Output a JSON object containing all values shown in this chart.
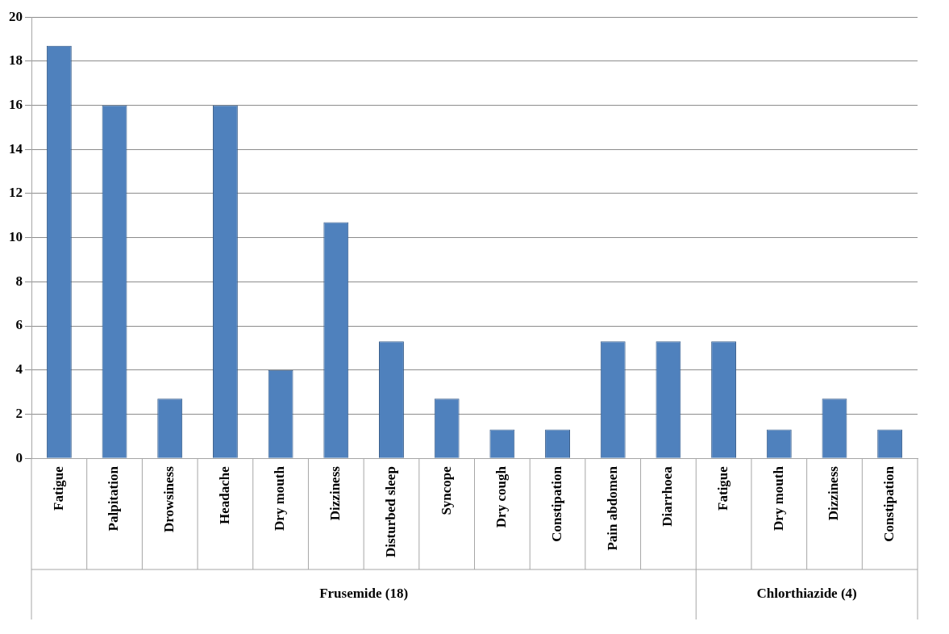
{
  "chart_data": {
    "type": "bar",
    "categories": [
      "Fatigue",
      "Palpitation",
      "Drowsiness",
      "Headache",
      "Dry mouth",
      "Dizziness",
      "Disturbed sleep",
      "Syncope",
      "Dry cough",
      "Constipation",
      "Pain abdomen",
      "Diarrhoea",
      "Fatigue",
      "Dry mouth",
      "Dizziness",
      "Constipation"
    ],
    "values": [
      18.7,
      16,
      2.7,
      16,
      4,
      10.7,
      5.3,
      2.7,
      1.3,
      1.3,
      5.3,
      5.3,
      5.3,
      1.3,
      2.7,
      1.3
    ],
    "color": "#4f81bd",
    "ylim": [
      0,
      20
    ],
    "yticks": [
      0,
      2,
      4,
      6,
      8,
      10,
      12,
      14,
      16,
      18,
      20
    ],
    "grid": "y",
    "legend": false,
    "annotations": [
      "Frusemide (18)",
      "Chlorthiazide (4)"
    ]
  }
}
